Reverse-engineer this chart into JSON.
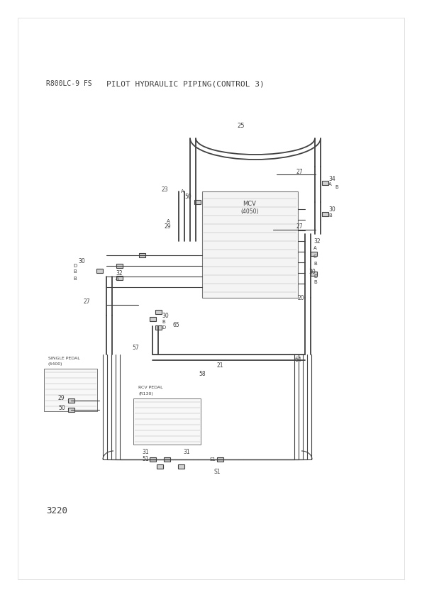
{
  "title_left": "R800LC-9 FS",
  "title_right": "PILOT HYDRAULIC PIPING(CONTROL 3)",
  "page_number": "3220",
  "background_color": "#ffffff",
  "line_color": "#404040",
  "text_color": "#404040",
  "fig_width": 5.95,
  "fig_height": 8.42
}
